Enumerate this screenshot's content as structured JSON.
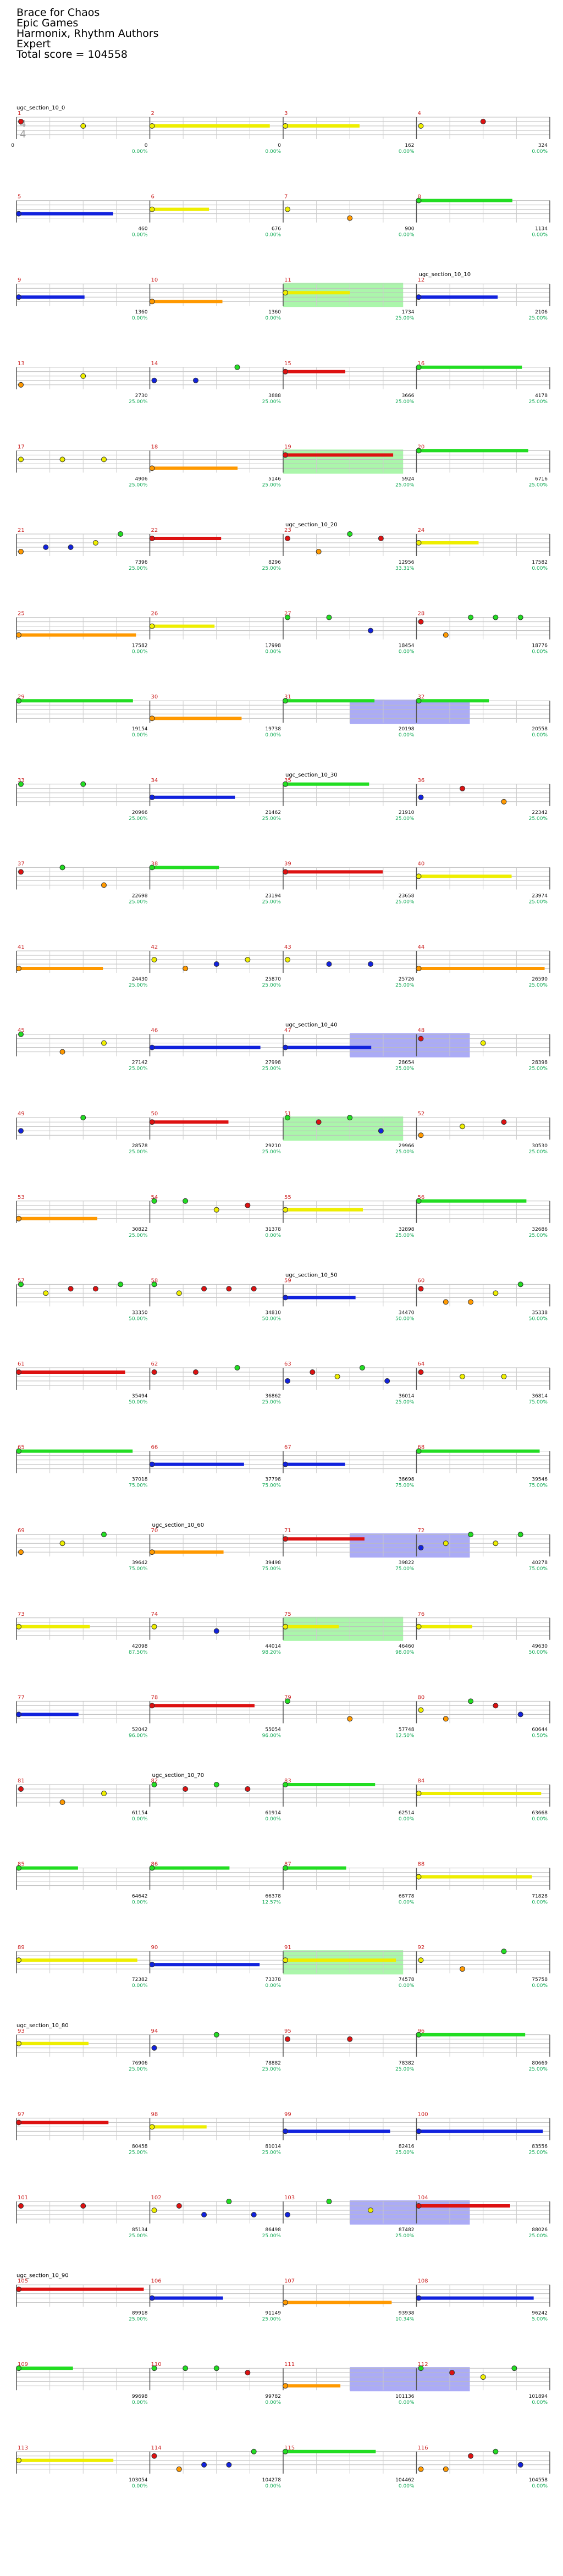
{
  "song": {
    "title": "Brace for Chaos",
    "artist": "Epic Games",
    "charter": "Harmonix, Rhythm Authors",
    "difficulty": "Expert",
    "total_score_label": "Total score = 104558"
  },
  "time_signature": "4/4",
  "lane_colors": {
    "green": "#22dd22",
    "red": "#dd1111",
    "yellow": "#eeee00",
    "blue": "#1122dd",
    "orange": "#ff9900",
    "measure_number": "#cc2222",
    "percent": "#11aa55",
    "score": "#111111",
    "overdrive": "#6666ee",
    "solo": "#66ee66"
  },
  "rows": [
    {
      "measures": [
        {
          "num": "1",
          "score": "0",
          "streak": "",
          "pct": ""
        },
        {
          "num": "2",
          "score": "0",
          "streak": "",
          "pct": "0.00%"
        },
        {
          "num": "3",
          "score": "0",
          "streak": "",
          "pct": "0.00%"
        },
        {
          "num": "4",
          "score": "162",
          "streak": "",
          "pct": "0.00%"
        }
      ],
      "extra": "324",
      "extra_pct": "0.00%",
      "section": "ugc_section_10_0",
      "section_measure": 0
    },
    {
      "measures": [
        {
          "num": "5",
          "score": "",
          "streak": "",
          "pct": ""
        },
        {
          "num": "6",
          "score": "460",
          "streak": "",
          "pct": "0.00%"
        },
        {
          "num": "7",
          "score": "676",
          "streak": "",
          "pct": "0.00%"
        },
        {
          "num": "8",
          "score": "900",
          "streak": "",
          "pct": "0.00%"
        }
      ],
      "extra": "1134",
      "extra_pct": "0.00%",
      "section": "",
      "section_measure": -1
    },
    {
      "measures": [
        {
          "num": "9",
          "score": "",
          "streak": "",
          "pct": ""
        },
        {
          "num": "10",
          "score": "1360",
          "streak": "",
          "pct": "0.00%"
        },
        {
          "num": "11",
          "score": "1360",
          "streak": "",
          "pct": "0.00%"
        },
        {
          "num": "12",
          "score": "1734",
          "streak": "",
          "pct": "25.00%"
        }
      ],
      "extra": "2106",
      "extra_pct": "25.00%",
      "section": "ugc_section_10_10",
      "section_measure": 3
    },
    {
      "measures": [
        {
          "num": "13",
          "score": "",
          "streak": "",
          "pct": ""
        },
        {
          "num": "14",
          "score": "2730",
          "streak": "",
          "pct": "25.00%"
        },
        {
          "num": "15",
          "score": "3888",
          "streak": "",
          "pct": "25.00%"
        },
        {
          "num": "16",
          "score": "3666",
          "streak": "",
          "pct": "25.00%"
        }
      ],
      "extra": "4178",
      "extra_pct": "25.00%",
      "section": "",
      "section_measure": -1
    },
    {
      "measures": [
        {
          "num": "17",
          "score": "",
          "streak": "",
          "pct": ""
        },
        {
          "num": "18",
          "score": "4906",
          "streak": "",
          "pct": "25.00%"
        },
        {
          "num": "19",
          "score": "5146",
          "streak": "",
          "pct": "25.00%"
        },
        {
          "num": "20",
          "score": "5924",
          "streak": "",
          "pct": "25.00%"
        }
      ],
      "extra": "6716",
      "extra_pct": "25.00%",
      "section": "",
      "section_measure": -1
    },
    {
      "measures": [
        {
          "num": "21",
          "score": "",
          "streak": "",
          "pct": ""
        },
        {
          "num": "22",
          "score": "7396",
          "streak": "",
          "pct": "25.00%"
        },
        {
          "num": "23",
          "score": "8296",
          "streak": "",
          "pct": "25.00%"
        },
        {
          "num": "24",
          "score": "12956",
          "streak": "",
          "pct": "33.31%"
        }
      ],
      "extra": "17582",
      "extra_pct": "0.00%",
      "section": "ugc_section_10_20",
      "section_measure": 2
    },
    {
      "measures": [
        {
          "num": "25",
          "score": "",
          "streak": "",
          "pct": ""
        },
        {
          "num": "26",
          "score": "17582",
          "streak": "",
          "pct": "0.00%"
        },
        {
          "num": "27",
          "score": "17998",
          "streak": "",
          "pct": "0.00%"
        },
        {
          "num": "28",
          "score": "18454",
          "streak": "",
          "pct": "0.00%"
        }
      ],
      "extra": "18776",
      "extra_pct": "0.00%",
      "section": "",
      "section_measure": -1
    },
    {
      "measures": [
        {
          "num": "29",
          "score": "",
          "streak": "",
          "pct": ""
        },
        {
          "num": "30",
          "score": "19154",
          "streak": "",
          "pct": "0.00%"
        },
        {
          "num": "31",
          "score": "19738",
          "streak": "",
          "pct": "0.00%"
        },
        {
          "num": "32",
          "score": "20198",
          "streak": "",
          "pct": "0.00%"
        }
      ],
      "extra": "20558",
      "extra_pct": "0.00%",
      "section": "",
      "section_measure": -1
    },
    {
      "measures": [
        {
          "num": "33",
          "score": "",
          "streak": "",
          "pct": ""
        },
        {
          "num": "34",
          "score": "20966",
          "streak": "",
          "pct": "25.00%"
        },
        {
          "num": "35",
          "score": "21462",
          "streak": "",
          "pct": "25.00%"
        },
        {
          "num": "36",
          "score": "21910",
          "streak": "",
          "pct": "25.00%"
        }
      ],
      "extra": "22342",
      "extra_pct": "25.00%",
      "section": "ugc_section_10_30",
      "section_measure": 2
    },
    {
      "measures": [
        {
          "num": "37",
          "score": "",
          "streak": "",
          "pct": ""
        },
        {
          "num": "38",
          "score": "22698",
          "streak": "",
          "pct": "25.00%"
        },
        {
          "num": "39",
          "score": "23194",
          "streak": "",
          "pct": "25.00%"
        },
        {
          "num": "40",
          "score": "23658",
          "streak": "",
          "pct": "25.00%"
        }
      ],
      "extra": "23974",
      "extra_pct": "25.00%",
      "section": "",
      "section_measure": -1
    },
    {
      "measures": [
        {
          "num": "41",
          "score": "",
          "streak": "",
          "pct": ""
        },
        {
          "num": "42",
          "score": "24430",
          "streak": "",
          "pct": "25.00%"
        },
        {
          "num": "43",
          "score": "25870",
          "streak": "",
          "pct": "25.00%"
        },
        {
          "num": "44",
          "score": "25726",
          "streak": "",
          "pct": "25.00%"
        }
      ],
      "extra": "26590",
      "extra_pct": "25.00%",
      "section": "",
      "section_measure": -1
    },
    {
      "measures": [
        {
          "num": "45",
          "score": "",
          "streak": "",
          "pct": ""
        },
        {
          "num": "46",
          "score": "27142",
          "streak": "",
          "pct": "25.00%"
        },
        {
          "num": "47",
          "score": "27998",
          "streak": "",
          "pct": "25.00%"
        },
        {
          "num": "48",
          "score": "28654",
          "streak": "",
          "pct": "25.00%"
        }
      ],
      "extra": "28398",
      "extra_pct": "25.00%",
      "section": "ugc_section_10_40",
      "section_measure": 2
    },
    {
      "measures": [
        {
          "num": "49",
          "score": "",
          "streak": "",
          "pct": ""
        },
        {
          "num": "50",
          "score": "28578",
          "streak": "",
          "pct": "25.00%"
        },
        {
          "num": "51",
          "score": "29210",
          "streak": "",
          "pct": "25.00%"
        },
        {
          "num": "52",
          "score": "29966",
          "streak": "",
          "pct": "25.00%"
        }
      ],
      "extra": "30530",
      "extra_pct": "25.00%",
      "section": "",
      "section_measure": -1
    },
    {
      "measures": [
        {
          "num": "53",
          "score": "",
          "streak": "",
          "pct": ""
        },
        {
          "num": "54",
          "score": "30822",
          "streak": "",
          "pct": "25.00%"
        },
        {
          "num": "55",
          "score": "31378",
          "streak": "",
          "pct": "0.00%"
        },
        {
          "num": "56",
          "score": "32898",
          "streak": "",
          "pct": "25.00%"
        }
      ],
      "extra": "32686",
      "extra_pct": "25.00%",
      "section": "",
      "section_measure": -1
    },
    {
      "measures": [
        {
          "num": "57",
          "score": "",
          "streak": "",
          "pct": ""
        },
        {
          "num": "58",
          "score": "33350",
          "streak": "",
          "pct": "50.00%"
        },
        {
          "num": "59",
          "score": "34810",
          "streak": "",
          "pct": "50.00%"
        },
        {
          "num": "60",
          "score": "34470",
          "streak": "",
          "pct": "50.00%"
        }
      ],
      "extra": "35338",
      "extra_pct": "50.00%",
      "section": "ugc_section_10_50",
      "section_measure": 2
    },
    {
      "measures": [
        {
          "num": "61",
          "score": "",
          "streak": "",
          "pct": ""
        },
        {
          "num": "62",
          "score": "35494",
          "streak": "",
          "pct": "50.00%"
        },
        {
          "num": "63",
          "score": "36862",
          "streak": "",
          "pct": "25.00%"
        },
        {
          "num": "64",
          "score": "36014",
          "streak": "",
          "pct": "25.00%"
        }
      ],
      "extra": "36814",
      "extra_pct": "75.00%",
      "section": "",
      "section_measure": -1
    },
    {
      "measures": [
        {
          "num": "65",
          "score": "",
          "streak": "",
          "pct": ""
        },
        {
          "num": "66",
          "score": "37018",
          "streak": "",
          "pct": "75.00%"
        },
        {
          "num": "67",
          "score": "37798",
          "streak": "",
          "pct": "75.00%"
        },
        {
          "num": "68",
          "score": "38698",
          "streak": "",
          "pct": "75.00%"
        }
      ],
      "extra": "39546",
      "extra_pct": "75.00%",
      "section": "",
      "section_measure": -1
    },
    {
      "measures": [
        {
          "num": "69",
          "score": "",
          "streak": "",
          "pct": ""
        },
        {
          "num": "70",
          "score": "39642",
          "streak": "",
          "pct": "75.00%"
        },
        {
          "num": "71",
          "score": "39498",
          "streak": "",
          "pct": "75.00%"
        },
        {
          "num": "72",
          "score": "39822",
          "streak": "",
          "pct": "75.00%"
        }
      ],
      "extra": "40278",
      "extra_pct": "75.00%",
      "section": "ugc_section_10_60",
      "section_measure": 1
    },
    {
      "measures": [
        {
          "num": "73",
          "score": "",
          "streak": "",
          "pct": ""
        },
        {
          "num": "74",
          "score": "42098",
          "streak": "",
          "pct": "87.50%"
        },
        {
          "num": "75",
          "score": "44014",
          "streak": "",
          "pct": "98.20%"
        },
        {
          "num": "76",
          "score": "46460",
          "streak": "",
          "pct": "98.00%"
        }
      ],
      "extra": "49630",
      "extra_pct": "50.00%",
      "section": "",
      "section_measure": -1
    },
    {
      "measures": [
        {
          "num": "77",
          "score": "",
          "streak": "",
          "pct": ""
        },
        {
          "num": "78",
          "score": "52042",
          "streak": "",
          "pct": "96.00%"
        },
        {
          "num": "79",
          "score": "55054",
          "streak": "",
          "pct": "96.00%"
        },
        {
          "num": "80",
          "score": "57748",
          "streak": "",
          "pct": "12.50%"
        }
      ],
      "extra": "60644",
      "extra_pct": "0.50%",
      "section": "",
      "section_measure": -1
    },
    {
      "measures": [
        {
          "num": "81",
          "score": "",
          "streak": "",
          "pct": ""
        },
        {
          "num": "82",
          "score": "61154",
          "streak": "",
          "pct": "0.00%"
        },
        {
          "num": "83",
          "score": "61914",
          "streak": "",
          "pct": "0.00%"
        },
        {
          "num": "84",
          "score": "62514",
          "streak": "",
          "pct": "0.00%"
        }
      ],
      "extra": "63668",
      "extra_pct": "0.00%",
      "section": "ugc_section_10_70",
      "section_measure": 1
    },
    {
      "measures": [
        {
          "num": "85",
          "score": "",
          "streak": "",
          "pct": ""
        },
        {
          "num": "86",
          "score": "64642",
          "streak": "",
          "pct": "0.00%"
        },
        {
          "num": "87",
          "score": "66378",
          "streak": "",
          "pct": "12.57%"
        },
        {
          "num": "88",
          "score": "68778",
          "streak": "",
          "pct": "0.00%"
        }
      ],
      "extra": "71828",
      "extra_pct": "0.00%",
      "section": "",
      "section_measure": -1
    },
    {
      "measures": [
        {
          "num": "89",
          "score": "",
          "streak": "",
          "pct": ""
        },
        {
          "num": "90",
          "score": "72382",
          "streak": "",
          "pct": "0.00%"
        },
        {
          "num": "91",
          "score": "73378",
          "streak": "",
          "pct": "0.00%"
        },
        {
          "num": "92",
          "score": "74578",
          "streak": "",
          "pct": "0.00%"
        }
      ],
      "extra": "75758",
      "extra_pct": "0.00%",
      "section": "",
      "section_measure": -1
    },
    {
      "measures": [
        {
          "num": "93",
          "score": "",
          "streak": "",
          "pct": ""
        },
        {
          "num": "94",
          "score": "76906",
          "streak": "",
          "pct": "25.00%"
        },
        {
          "num": "95",
          "score": "78882",
          "streak": "",
          "pct": "25.00%"
        },
        {
          "num": "96",
          "score": "78382",
          "streak": "",
          "pct": "25.00%"
        }
      ],
      "extra": "80669",
      "extra_pct": "25.00%",
      "section": "ugc_section_10_80",
      "section_measure": 0
    },
    {
      "measures": [
        {
          "num": "97",
          "score": "",
          "streak": "",
          "pct": ""
        },
        {
          "num": "98",
          "score": "80458",
          "streak": "",
          "pct": "25.00%"
        },
        {
          "num": "99",
          "score": "81014",
          "streak": "",
          "pct": "25.00%"
        },
        {
          "num": "100",
          "score": "82416",
          "streak": "",
          "pct": "25.00%"
        }
      ],
      "extra": "83556",
      "extra_pct": "25.00%",
      "section": "",
      "section_measure": -1
    },
    {
      "measures": [
        {
          "num": "101",
          "score": "",
          "streak": "",
          "pct": ""
        },
        {
          "num": "102",
          "score": "85134",
          "streak": "",
          "pct": "25.00%"
        },
        {
          "num": "103",
          "score": "86498",
          "streak": "",
          "pct": "25.00%"
        },
        {
          "num": "104",
          "score": "87482",
          "streak": "",
          "pct": "25.00%"
        }
      ],
      "extra": "88026",
      "extra_pct": "25.00%",
      "section": "",
      "section_measure": -1
    },
    {
      "measures": [
        {
          "num": "105",
          "score": "",
          "streak": "",
          "pct": ""
        },
        {
          "num": "106",
          "score": "89918",
          "streak": "",
          "pct": "25.00%"
        },
        {
          "num": "107",
          "score": "91149",
          "streak": "",
          "pct": "25.00%"
        },
        {
          "num": "108",
          "score": "93938",
          "streak": "",
          "pct": "10.34%"
        }
      ],
      "extra": "96242",
      "extra_pct": "5.00%",
      "section": "ugc_section_10_90",
      "section_measure": 0
    },
    {
      "measures": [
        {
          "num": "109",
          "score": "",
          "streak": "",
          "pct": ""
        },
        {
          "num": "110",
          "score": "99698",
          "streak": "",
          "pct": "0.00%"
        },
        {
          "num": "111",
          "score": "99782",
          "streak": "",
          "pct": "0.00%"
        },
        {
          "num": "112",
          "score": "101136",
          "streak": "",
          "pct": "0.00%"
        }
      ],
      "extra": "101894",
      "extra_pct": "0.00%",
      "section": "",
      "section_measure": -1
    },
    {
      "measures": [
        {
          "num": "113",
          "score": "",
          "streak": "",
          "pct": ""
        },
        {
          "num": "114",
          "score": "103054",
          "streak": "",
          "pct": "0.00%"
        },
        {
          "num": "115",
          "score": "104278",
          "streak": "",
          "pct": "0.00%"
        },
        {
          "num": "116",
          "score": "104462",
          "streak": "",
          "pct": "0.00%"
        }
      ],
      "extra": "104558",
      "extra_pct": "0.00%",
      "section": "",
      "section_measure": -1
    }
  ]
}
